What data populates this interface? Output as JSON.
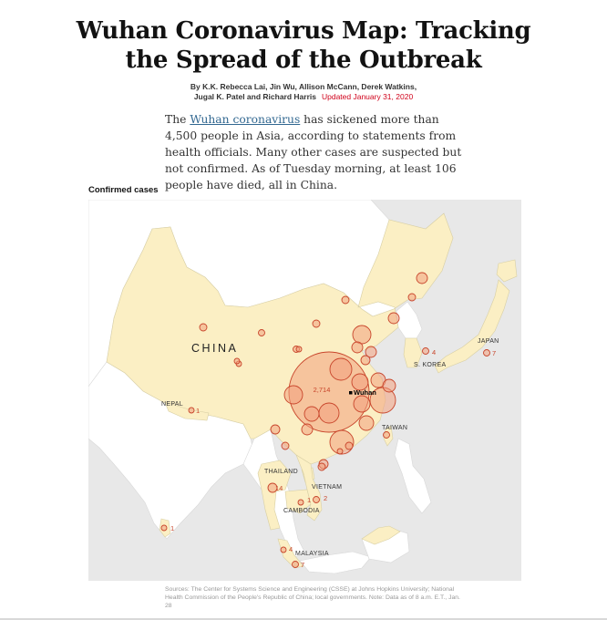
{
  "headline": {
    "line1": "Wuhan Coronavirus Map: Tracking",
    "line2": "the Spread of the Outbreak"
  },
  "byline": {
    "line1": "By K.K. Rebecca Lai, Jin Wu, Allison McCann, Derek Watkins,",
    "line2": "Jugal K. Patel and Richard Harris",
    "updated": "Updated January 31, 2020"
  },
  "intro": {
    "before_link": "The ",
    "link_text": "Wuhan coronavirus",
    "after_link": " has sickened more than 4,500 people in Asia, according to statements from health officials. Many other cases are suspected but not confirmed. As of Tuesday morning, at least 106 people have died, all in China."
  },
  "map": {
    "label": "Confirmed cases",
    "colors": {
      "sea": "#e8e8e8",
      "other_land": "#ffffff",
      "affected_land": "#fbefc4",
      "bubble_fill": "#f2a07d",
      "bubble_stroke": "#c8452b"
    },
    "country_labels": {
      "china": "CHINA",
      "japan": "JAPAN",
      "south_korea": "S. KOREA",
      "nepal": "NEPAL",
      "taiwan": "TAIWAN",
      "thailand": "THAILAND",
      "vietnam": "VIETNAM",
      "cambodia": "CAMBODIA",
      "malaysia": "MALAYSIA"
    },
    "city_label": "Wuhan",
    "counts": {
      "wuhan": "2,714",
      "south_korea": "4",
      "japan": "7",
      "nepal": "1",
      "thailand": "14",
      "vietnam": "2",
      "cambodia": "1",
      "sri_lanka": "1",
      "malaysia_north": "4",
      "malaysia_south": "7"
    }
  },
  "source": "Sources: The Center for Systems Science and Engineering (CSSE) at Johns Hopkins University; National Health Commission of the People's Republic of China; local governments. Note: Data as of 8 a.m. E.T., Jan. 28"
}
